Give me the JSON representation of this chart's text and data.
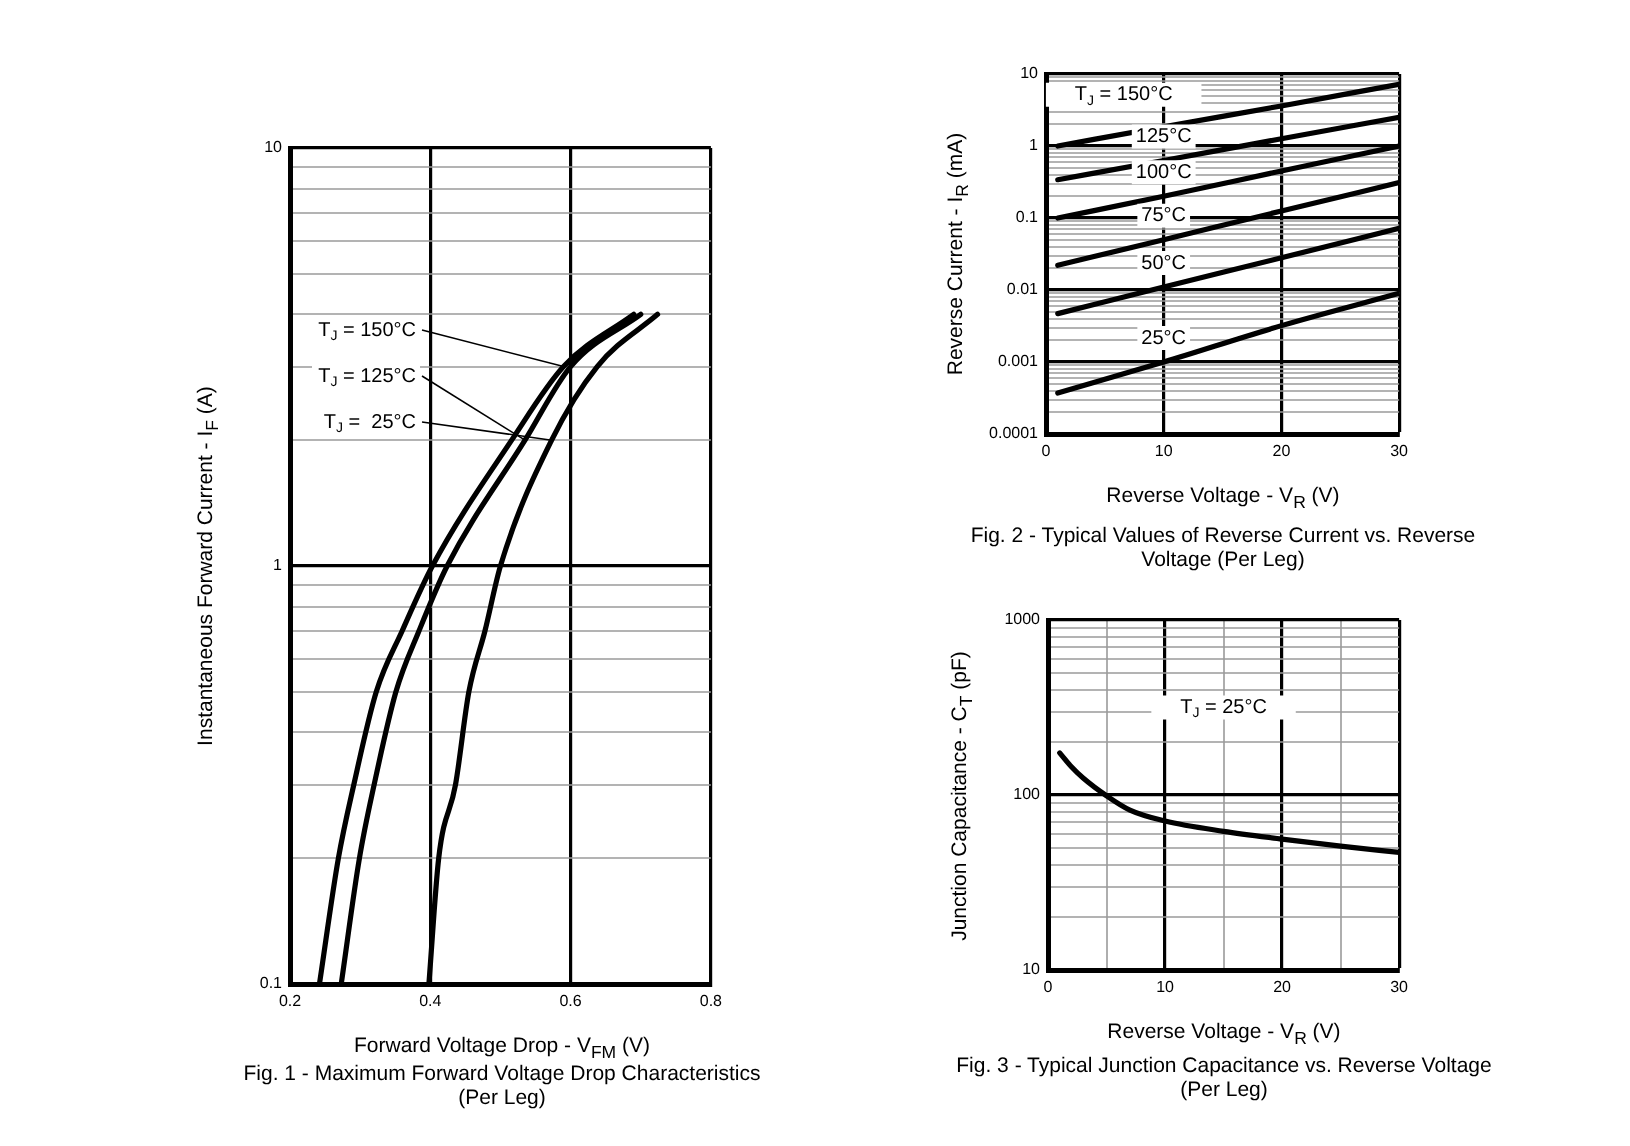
{
  "chart_data": [
    {
      "type": "line",
      "title": "Fig. 1 - Maximum Forward Voltage Drop Characteristics (Per Leg)",
      "xlabel": "Forward Voltage Drop - V$_{FM}$ (V)",
      "ylabel": "Instantaneous Forward Current - I$_{F}$ (A)",
      "annotations": [
        {
          "text": "T$_{J}$ = 150°C",
          "x": 0.59,
          "y": 3
        },
        {
          "text": "T$_{J}$ = 125°C",
          "x": 0.535,
          "y": 2
        },
        {
          "text": "T$_{J}$ =  25°C",
          "x": 0.573,
          "y": 2
        }
      ],
      "series": [
        {
          "color": "#000000",
          "x": [
            0.242,
            0.269,
            0.291,
            0.323,
            0.36,
            0.403,
            0.516,
            0.59,
            0.69
          ],
          "values": [
            0.1,
            0.2,
            0.3,
            0.5,
            0.7,
            1,
            2,
            3,
            4
          ]
        },
        {
          "color": "#000000",
          "x": [
            0.273,
            0.299,
            0.32,
            0.351,
            0.384,
            0.424,
            0.535,
            0.6,
            0.7
          ],
          "values": [
            0.1,
            0.2,
            0.3,
            0.5,
            0.7,
            1,
            2,
            3,
            4
          ]
        },
        {
          "color": "#000000",
          "x": [
            0.398,
            0.412,
            0.436,
            0.455,
            0.478,
            0.5,
            0.573,
            0.638,
            0.724
          ],
          "values": [
            0.1,
            0.2,
            0.3,
            0.5,
            0.7,
            1,
            2,
            3,
            4
          ]
        }
      ],
      "xlim": [
        0.2,
        0.8
      ],
      "xticks": [
        0.2,
        0.4,
        0.6,
        0.8
      ],
      "ylim": [
        0.1,
        10
      ],
      "yticks": [
        0.1,
        {
          "value": 0.2,
          "label": null
        },
        {
          "value": 0.3,
          "label": null
        },
        {
          "value": 0.4,
          "label": null
        },
        {
          "value": 0.5,
          "label": null
        },
        {
          "value": 0.6,
          "label": null
        },
        {
          "value": 0.7,
          "label": null
        },
        {
          "value": 0.8,
          "label": null
        },
        {
          "value": 0.9,
          "label": null
        },
        1,
        {
          "value": 2,
          "label": null
        },
        {
          "value": 3,
          "label": null
        },
        {
          "value": 4,
          "label": null
        },
        {
          "value": 5,
          "label": null
        },
        {
          "value": 6,
          "label": null
        },
        {
          "value": 7,
          "label": null
        },
        {
          "value": 8,
          "label": null
        },
        {
          "value": 9,
          "label": null
        },
        10
      ],
      "log": "y",
      "grid": true,
      "marker": "none",
      "line_style": "solid"
    },
    {
      "type": "line",
      "title": "Fig. 2 - Typical Values of Reverse Current vs. Reverse Voltage (Per Leg)",
      "xlabel": "Reverse Voltage - V$_{R}$  (V)",
      "ylabel": "Reverse Current - I$_{R}$ (mA)",
      "x": [
        1,
        10,
        20,
        30
      ],
      "series": [
        {
          "name": "T$_{J}$ = 150°C",
          "color": "#000000",
          "values": [
            1.0,
            1.85,
            3.6,
            7.2
          ]
        },
        {
          "name": "125°C",
          "color": "#000000",
          "values": [
            0.34,
            0.63,
            1.26,
            2.5
          ]
        },
        {
          "name": "100°C",
          "color": "#000000",
          "values": [
            0.1,
            0.2,
            0.45,
            1.0
          ]
        },
        {
          "name": "75°C",
          "color": "#000000",
          "values": [
            0.022,
            0.05,
            0.125,
            0.31
          ]
        },
        {
          "name": "50°C",
          "color": "#000000",
          "values": [
            0.0047,
            0.011,
            0.028,
            0.072
          ]
        },
        {
          "name": "25°C",
          "color": "#000000",
          "values": [
            0.00037,
            0.001,
            0.0032,
            0.009
          ]
        }
      ],
      "xlim": [
        0,
        30
      ],
      "xticks": [
        0,
        10,
        20,
        30
      ],
      "ylim": [
        0.0001,
        10
      ],
      "yticks": [
        0.0001,
        {
          "value": 0.0002,
          "label": null
        },
        {
          "value": 0.0003,
          "label": null
        },
        {
          "value": 0.0004,
          "label": null
        },
        {
          "value": 0.0005,
          "label": null
        },
        {
          "value": 0.0006,
          "label": null
        },
        {
          "value": 0.0007,
          "label": null
        },
        {
          "value": 0.0008,
          "label": null
        },
        {
          "value": 0.0009,
          "label": null
        },
        0.001,
        {
          "value": 0.002,
          "label": null
        },
        {
          "value": 0.003,
          "label": null
        },
        {
          "value": 0.004,
          "label": null
        },
        {
          "value": 0.005,
          "label": null
        },
        {
          "value": 0.006,
          "label": null
        },
        {
          "value": 0.007,
          "label": null
        },
        {
          "value": 0.008,
          "label": null
        },
        {
          "value": 0.009,
          "label": null
        },
        0.01,
        {
          "value": 0.02,
          "label": null
        },
        {
          "value": 0.03,
          "label": null
        },
        {
          "value": 0.04,
          "label": null
        },
        {
          "value": 0.05,
          "label": null
        },
        {
          "value": 0.06,
          "label": null
        },
        {
          "value": 0.07,
          "label": null
        },
        {
          "value": 0.08,
          "label": null
        },
        {
          "value": 0.09,
          "label": null
        },
        0.1,
        {
          "value": 0.2,
          "label": null
        },
        {
          "value": 0.3,
          "label": null
        },
        {
          "value": 0.4,
          "label": null
        },
        {
          "value": 0.5,
          "label": null
        },
        {
          "value": 0.6,
          "label": null
        },
        {
          "value": 0.7,
          "label": null
        },
        {
          "value": 0.8,
          "label": null
        },
        {
          "value": 0.9,
          "label": null
        },
        1,
        {
          "value": 2,
          "label": null
        },
        {
          "value": 3,
          "label": null
        },
        {
          "value": 4,
          "label": null
        },
        {
          "value": 5,
          "label": null
        },
        {
          "value": 6,
          "label": null
        },
        {
          "value": 7,
          "label": null
        },
        {
          "value": 8,
          "label": null
        },
        {
          "value": 9,
          "label": null
        },
        10
      ],
      "log": "y",
      "grid": true,
      "marker": "none",
      "line_style": "solid"
    },
    {
      "type": "line",
      "title": "Fig. 3 - Typical Junction Capacitance vs. Reverse Voltage (Per Leg)",
      "xlabel": "Reverse Voltage - V$_{R}$ (V)",
      "ylabel": "Junction Capacitance - C$_{T}$ (pF)",
      "annotations": [
        "T$_{J}$ = 25°C"
      ],
      "x": [
        1,
        2,
        3,
        5,
        7,
        10,
        15,
        20,
        25,
        30
      ],
      "series": [
        {
          "color": "#000000",
          "values": [
            174,
            145,
            125,
            99,
            82,
            71,
            62,
            56,
            51,
            47
          ]
        }
      ],
      "xlim": [
        0,
        30
      ],
      "xticks": [
        0,
        {
          "value": 5,
          "label": null
        },
        10,
        {
          "value": 15,
          "label": null
        },
        20,
        {
          "value": 25,
          "label": null
        },
        30
      ],
      "ylim": [
        10,
        1000
      ],
      "yticks": [
        10,
        {
          "value": 20,
          "label": null
        },
        {
          "value": 30,
          "label": null
        },
        {
          "value": 40,
          "label": null
        },
        {
          "value": 50,
          "label": null
        },
        {
          "value": 60,
          "label": null
        },
        {
          "value": 70,
          "label": null
        },
        {
          "value": 80,
          "label": null
        },
        {
          "value": 90,
          "label": null
        },
        100,
        {
          "value": 200,
          "label": null
        },
        {
          "value": 300,
          "label": null
        },
        {
          "value": 400,
          "label": null
        },
        {
          "value": 500,
          "label": null
        },
        {
          "value": 600,
          "label": null
        },
        {
          "value": 700,
          "label": null
        },
        {
          "value": 800,
          "label": null
        },
        {
          "value": 900,
          "label": null
        },
        1000
      ],
      "log": "y",
      "grid": true,
      "marker": "none",
      "line_style": "solid"
    }
  ]
}
